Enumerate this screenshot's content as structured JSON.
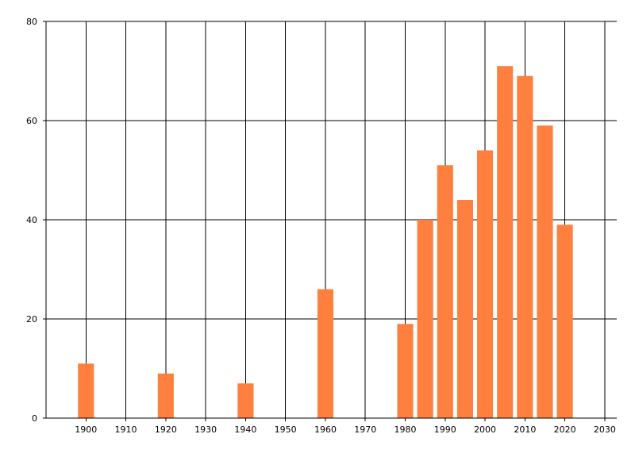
{
  "chart_data": {
    "type": "bar",
    "title": "",
    "xlabel": "",
    "ylabel": "",
    "xlim": [
      1890,
      2033
    ],
    "ylim": [
      0,
      80
    ],
    "x_ticks": [
      1900,
      1910,
      1920,
      1930,
      1940,
      1950,
      1960,
      1970,
      1980,
      1990,
      2000,
      2010,
      2020,
      2030
    ],
    "y_ticks": [
      0,
      20,
      40,
      60,
      80
    ],
    "grid": true,
    "legend": "none",
    "bar_color": "#ff7f3f",
    "bar_width_years": 4,
    "x": [
      1900,
      1920,
      1940,
      1960,
      1980,
      1985,
      1990,
      1995,
      2000,
      2005,
      2010,
      2015,
      2020
    ],
    "values": [
      11,
      9,
      7,
      26,
      19,
      40,
      51,
      44,
      54,
      71,
      69,
      59,
      39
    ]
  }
}
